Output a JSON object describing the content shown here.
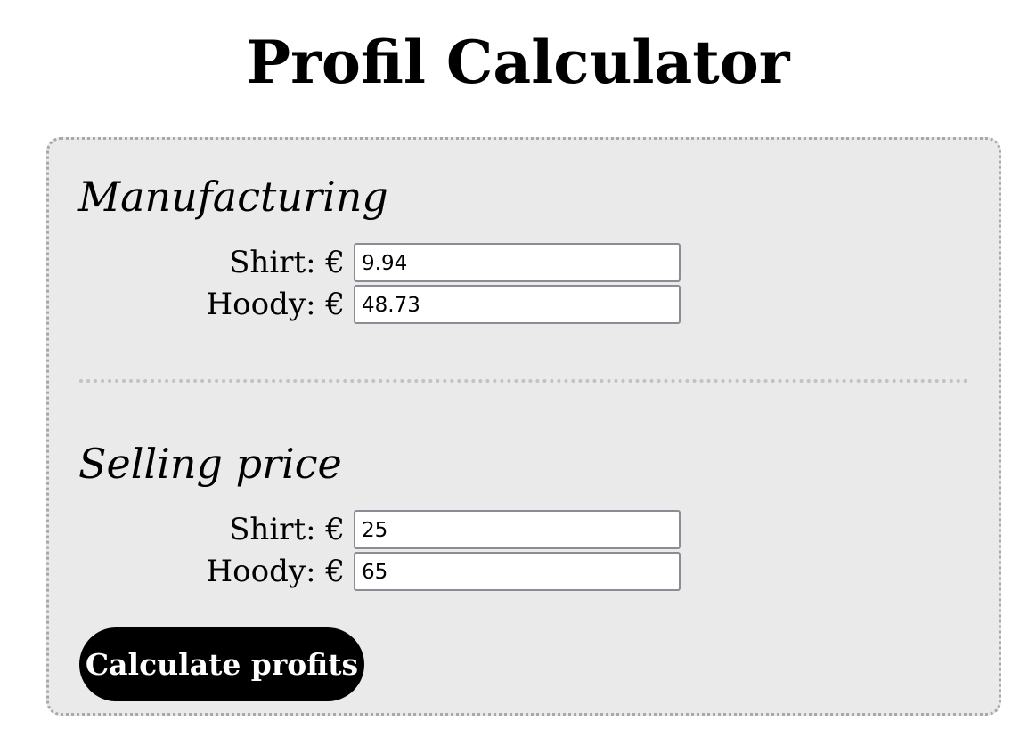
{
  "page": {
    "title": "Profil Calculator"
  },
  "manufacturing": {
    "heading": "Manufacturing",
    "shirt_label": "Shirt: €",
    "shirt_value": "9.94",
    "hoody_label": "Hoody: €",
    "hoody_value": "48.73"
  },
  "selling": {
    "heading": "Selling price",
    "shirt_label": "Shirt: €",
    "shirt_value": "25",
    "hoody_label": "Hoody: €",
    "hoody_value": "65"
  },
  "actions": {
    "calculate_label": "Calculate profits"
  },
  "colors": {
    "panel_background": "#eaeaea",
    "panel_border": "#a8a8a8",
    "button_background": "#000000",
    "button_text": "#ffffff"
  }
}
